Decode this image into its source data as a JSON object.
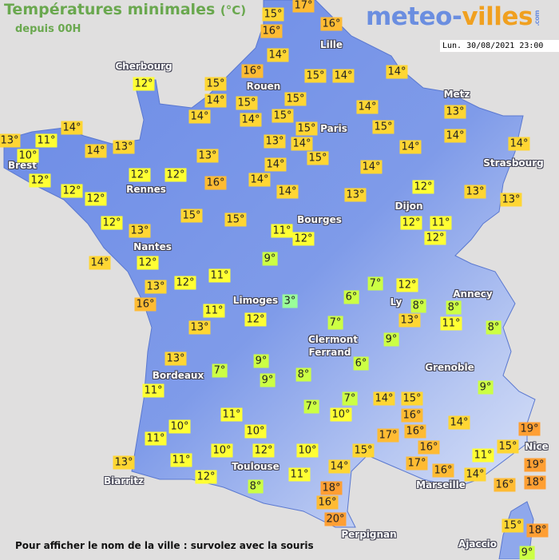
{
  "header": {
    "title": "Températures minimales",
    "unit": "(°C)",
    "subtitle": "depuis 00H"
  },
  "logo": {
    "part1": "meteo-",
    "part2": "villes",
    "suffix": ".com"
  },
  "timestamp": "Lun. 30/08/2021 23:00",
  "footer": "Pour afficher le nom de la ville : survolez avec la souris",
  "colors": {
    "land": "#6f8fe6",
    "sea": "#e0dfdf",
    "cold": "#99ff99",
    "cool": "#ccff44",
    "mild": "#ffff33",
    "warm": "#ffd633",
    "hot": "#ffbb33",
    "veryhot": "#ff9f33",
    "title": "#6aa84f"
  },
  "cities": [
    "Cherbourg",
    "Lille",
    "Rouen",
    "Paris",
    "Metz",
    "Brest",
    "Rennes",
    "Strasbourg",
    "Dijon",
    "Bourges",
    "Nantes",
    "Limoges",
    "Annecy",
    "Ly",
    "Clermont",
    "Ferrand",
    "Grenoble",
    "Bordeaux",
    "Toulouse",
    "Marseille",
    "Biarritz",
    "Nice",
    "Perpignan",
    "Ajaccio"
  ],
  "readings": [
    "15°",
    "17°",
    "16°",
    "16°",
    "14°",
    "16°",
    "15°",
    "14°",
    "14°",
    "12°",
    "15°",
    "14°",
    "14°",
    "15°",
    "14°",
    "15°",
    "15°",
    "15°",
    "15°",
    "14°",
    "13°",
    "14°",
    "15°",
    "13°",
    "14°",
    "14°",
    "14°",
    "14°",
    "13°",
    "13°",
    "12°",
    "13°",
    "14°",
    "14°",
    "14°",
    "16°",
    "13°",
    "12°",
    "12°",
    "15°",
    "15°",
    "11°",
    "12°",
    "12°",
    "11°",
    "12°",
    "13°",
    "11°",
    "10°",
    "14°",
    "14°",
    "13°",
    "12°",
    "12°",
    "12°",
    "12°",
    "13°",
    "14°",
    "12°",
    "13°",
    "16°",
    "12°",
    "11°",
    "9°",
    "3°",
    "6°",
    "7°",
    "12°",
    "8°",
    "13°",
    "8°",
    "11°",
    "8°",
    "7°",
    "9°",
    "6°",
    "8°",
    "9°",
    "9°",
    "7°",
    "11°",
    "13°",
    "12°",
    "13°",
    "11°",
    "7°",
    "7°",
    "10°",
    "14°",
    "15°",
    "16°",
    "17°",
    "16°",
    "14°",
    "16°",
    "17°",
    "16°",
    "11°",
    "14°",
    "16°",
    "15°",
    "19°",
    "19°",
    "18°",
    "9°",
    "11°",
    "10°",
    "11°",
    "10°",
    "10°",
    "12°",
    "10°",
    "15°",
    "14°",
    "11°",
    "13°",
    "11°",
    "12°",
    "8°",
    "18°",
    "16°",
    "20°",
    "15°",
    "18°",
    "9°"
  ]
}
